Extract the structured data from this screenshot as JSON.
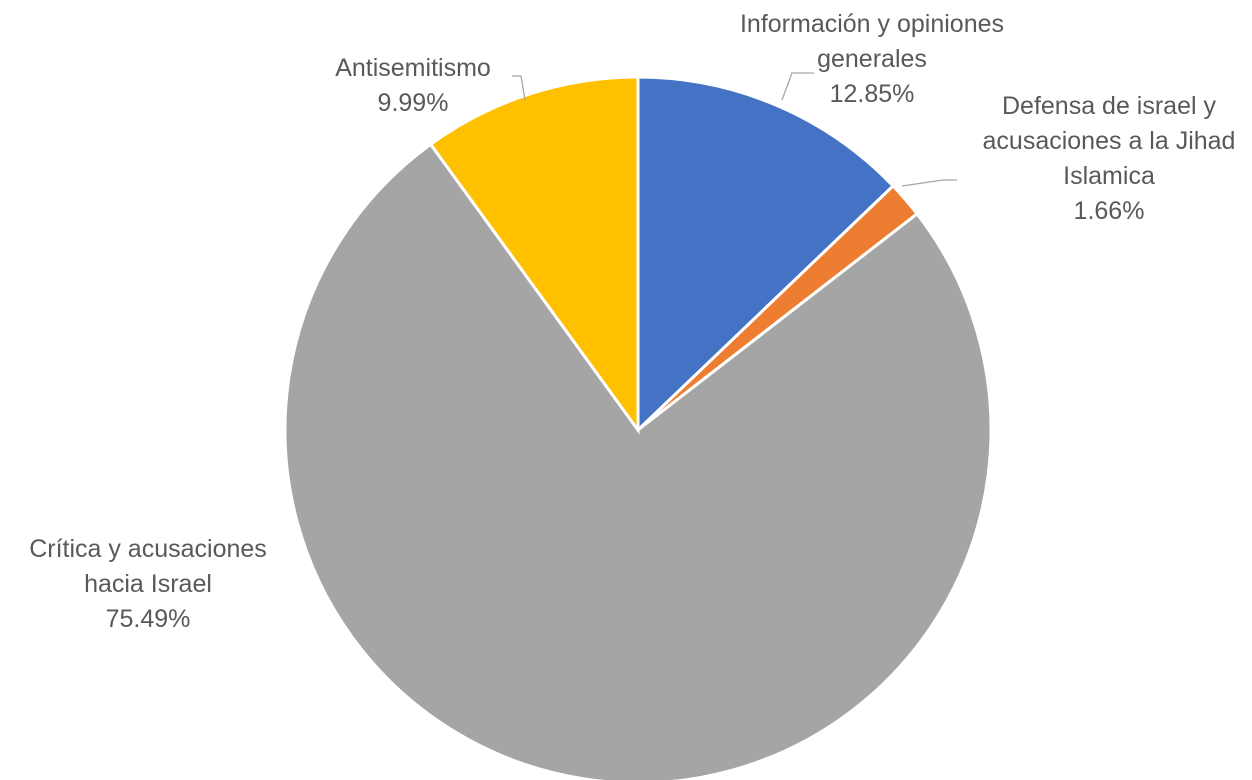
{
  "chart_data": {
    "type": "pie",
    "start_angle_deg": 0,
    "direction": "clockwise",
    "legend": "none",
    "slices": [
      {
        "label_lines": [
          "Información y opiniones",
          "generales"
        ],
        "value": 12.85,
        "value_label": "12.85%",
        "color": "#4472c4"
      },
      {
        "label_lines": [
          "Defensa de israel y",
          "acusaciones a la Jihad",
          "Islamica"
        ],
        "value": 1.66,
        "value_label": "1.66%",
        "color": "#ed7d31"
      },
      {
        "label_lines": [
          "Crítica y acusaciones",
          "hacia Israel"
        ],
        "value": 75.49,
        "value_label": "75.49%",
        "color": "#a5a5a5"
      },
      {
        "label_lines": [
          "Antisemitismo"
        ],
        "value": 9.99,
        "value_label": "9.99%",
        "color": "#ffc000"
      }
    ]
  }
}
